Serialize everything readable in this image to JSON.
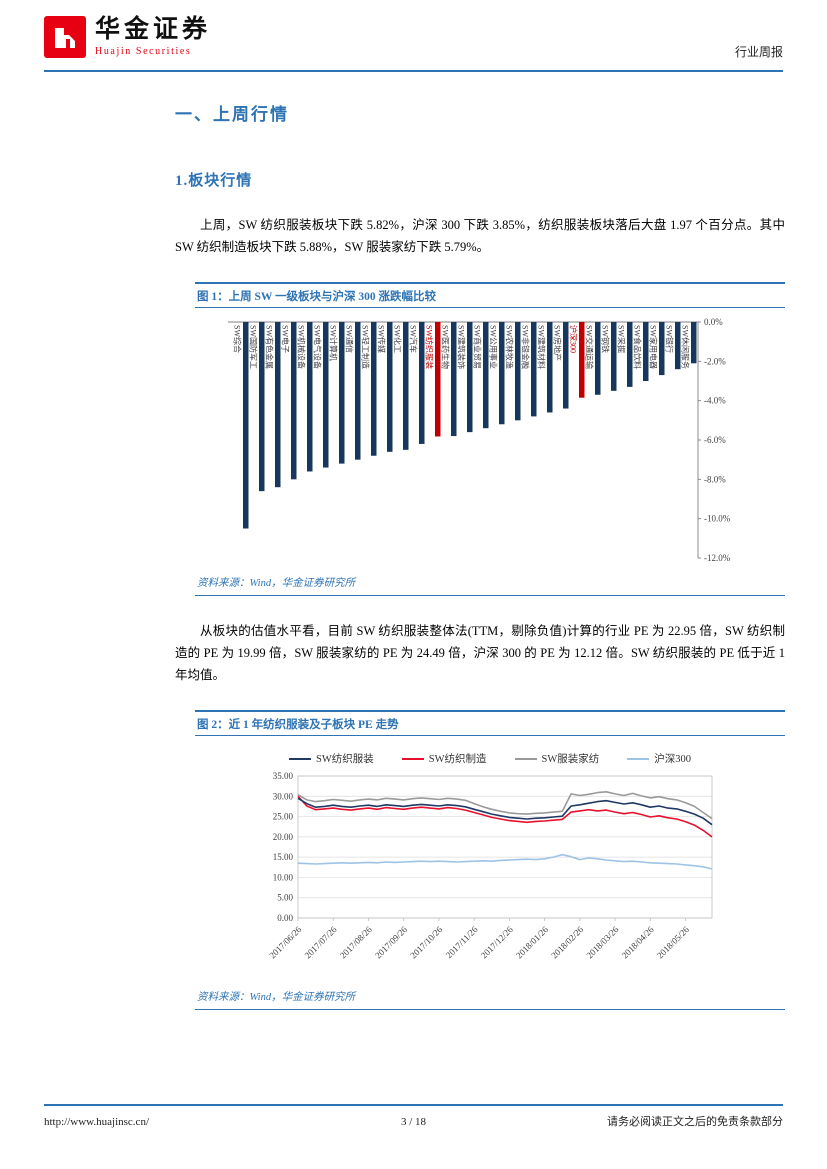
{
  "header": {
    "brand_cn": "华金证券",
    "brand_en": "Huajin Securities",
    "doc_type": "行业周报"
  },
  "headings": {
    "h1": "一、上周行情",
    "h2": "1.板块行情"
  },
  "paragraphs": {
    "p1": "上周，SW 纺织服装板块下跌 5.82%，沪深 300 下跌 3.85%，纺织服装板块落后大盘 1.97 个百分点。其中 SW 纺织制造板块下跌 5.88%，SW 服装家纺下跌 5.79%。",
    "p2": "从板块的估值水平看，目前 SW 纺织服装整体法(TTM，剔除负值)计算的行业 PE 为 22.95 倍，SW 纺织制造的 PE 为 19.99 倍，SW 服装家纺的 PE 为 24.49 倍，沪深 300 的 PE 为 12.12 倍。SW 纺织服装的 PE 低于近 1 年均值。"
  },
  "figure1": {
    "caption": "图 1：上周 SW 一级板块与沪深 300 涨跌幅比较",
    "source": "资料来源：Wind，华金证券研究所"
  },
  "figure2": {
    "caption": "图 2：近 1 年纺织服装及子板块 PE 走势",
    "source": "资料来源：Wind，华金证券研究所"
  },
  "footer": {
    "url": "http://www.huajinsc.cn/",
    "page": "3 / 18",
    "disclaimer": "请务必阅读正文之后的免责条款部分"
  },
  "chart_data": [
    {
      "type": "bar",
      "title": "上周SW一级板块与沪深300涨跌幅比较",
      "categories": [
        "SW综合",
        "SW国防军工",
        "SW有色金属",
        "SW电子",
        "SW机械设备",
        "SW电气设备",
        "SW计算机",
        "SW通信",
        "SW轻工制造",
        "SW传媒",
        "SW化工",
        "SW汽车",
        "SW纺织服装",
        "SW医药生物",
        "SW建筑装饰",
        "SW商业贸易",
        "SW公用事业",
        "SW农林牧渔",
        "SW非银金融",
        "SW建筑材料",
        "SW房地产",
        "沪深300",
        "SW交通运输",
        "SW钢铁",
        "SW采掘",
        "SW食品饮料",
        "SW家用电器",
        "SW银行",
        "SW休闲服务"
      ],
      "values": [
        -10.5,
        -8.6,
        -8.4,
        -8.0,
        -7.6,
        -7.4,
        -7.2,
        -7.0,
        -6.8,
        -6.6,
        -6.5,
        -6.2,
        -5.82,
        -5.8,
        -5.6,
        -5.4,
        -5.2,
        -5.0,
        -4.8,
        -4.6,
        -4.4,
        -3.85,
        -3.7,
        -3.5,
        -3.3,
        -3.0,
        -2.7,
        -2.4,
        -2.1
      ],
      "highlight_categories": [
        "SW纺织服装",
        "沪深300"
      ],
      "bar_color": "#17375e",
      "highlight_color": "#c00000",
      "ylim": [
        -12,
        0
      ],
      "yticks": [
        "0.0%",
        "-2.0%",
        "-4.0%",
        "-6.0%",
        "-8.0%",
        "-10.0%",
        "-12.0%"
      ],
      "axis_side": "right",
      "grid": false
    },
    {
      "type": "line",
      "title": "近1年纺织服装及子板块PE走势",
      "legend_position": "top",
      "ylim": [
        0,
        35
      ],
      "yticks": [
        "0.00",
        "5.00",
        "10.00",
        "15.00",
        "20.00",
        "25.00",
        "30.00",
        "35.00"
      ],
      "x_tick_labels": [
        "2017/06/26",
        "2017/07/26",
        "2017/08/26",
        "2017/09/26",
        "2017/10/26",
        "2017/11/26",
        "2017/12/26",
        "2018/01/26",
        "2018/02/26",
        "2018/03/26",
        "2018/04/26",
        "2018/05/26"
      ],
      "points_per_month": 4,
      "grid": true,
      "series": [
        {
          "name": "SW纺织服装",
          "color": "#1f3864",
          "values": [
            29.5,
            28.2,
            27.3,
            27.5,
            27.8,
            27.5,
            27.3,
            27.6,
            27.8,
            27.5,
            27.9,
            27.7,
            27.5,
            27.8,
            28.0,
            27.8,
            27.6,
            27.9,
            27.7,
            27.4,
            26.8,
            26.2,
            25.6,
            25.2,
            24.8,
            24.6,
            24.4,
            24.6,
            24.7,
            24.9,
            25.1,
            27.6,
            27.9,
            28.3,
            28.7,
            28.9,
            28.5,
            28.1,
            28.4,
            27.9,
            27.3,
            27.6,
            27.1,
            26.9,
            26.3,
            25.6,
            24.6,
            23.0
          ]
        },
        {
          "name": "SW纺织制造",
          "color": "#e8112d",
          "values": [
            30.0,
            27.6,
            26.7,
            26.9,
            27.1,
            26.8,
            26.6,
            26.9,
            27.1,
            26.8,
            27.2,
            27.0,
            26.8,
            27.1,
            27.3,
            27.1,
            26.9,
            27.2,
            27.0,
            26.6,
            26.0,
            25.4,
            24.8,
            24.4,
            24.0,
            23.8,
            23.6,
            23.8,
            23.9,
            24.1,
            24.3,
            26.1,
            26.4,
            26.7,
            26.4,
            26.6,
            26.1,
            25.7,
            26.0,
            25.5,
            24.9,
            25.2,
            24.7,
            24.4,
            23.7,
            22.9,
            21.6,
            20.0
          ]
        },
        {
          "name": "SW服装家纺",
          "color": "#9a9a9a",
          "values": [
            30.4,
            29.1,
            28.7,
            28.9,
            29.2,
            29.0,
            28.8,
            29.1,
            29.3,
            29.1,
            29.5,
            29.3,
            29.1,
            29.4,
            29.6,
            29.4,
            29.2,
            29.5,
            29.3,
            29.0,
            28.2,
            27.4,
            26.8,
            26.3,
            25.9,
            25.7,
            25.6,
            25.8,
            25.9,
            26.1,
            26.3,
            30.6,
            30.2,
            30.5,
            30.9,
            31.1,
            30.6,
            30.2,
            30.7,
            30.1,
            29.6,
            29.9,
            29.4,
            29.1,
            28.4,
            27.5,
            26.0,
            24.5
          ]
        },
        {
          "name": "沪深300",
          "color": "#9dc3e6",
          "values": [
            13.5,
            13.4,
            13.3,
            13.4,
            13.5,
            13.6,
            13.5,
            13.6,
            13.7,
            13.6,
            13.8,
            13.7,
            13.8,
            13.9,
            14.0,
            13.9,
            14.0,
            13.9,
            13.8,
            13.9,
            14.0,
            14.1,
            14.0,
            14.2,
            14.3,
            14.4,
            14.5,
            14.4,
            14.6,
            15.0,
            15.6,
            15.1,
            14.4,
            14.8,
            14.6,
            14.3,
            14.1,
            13.9,
            14.0,
            13.8,
            13.6,
            13.5,
            13.4,
            13.3,
            13.1,
            12.9,
            12.6,
            12.1
          ]
        }
      ]
    }
  ]
}
